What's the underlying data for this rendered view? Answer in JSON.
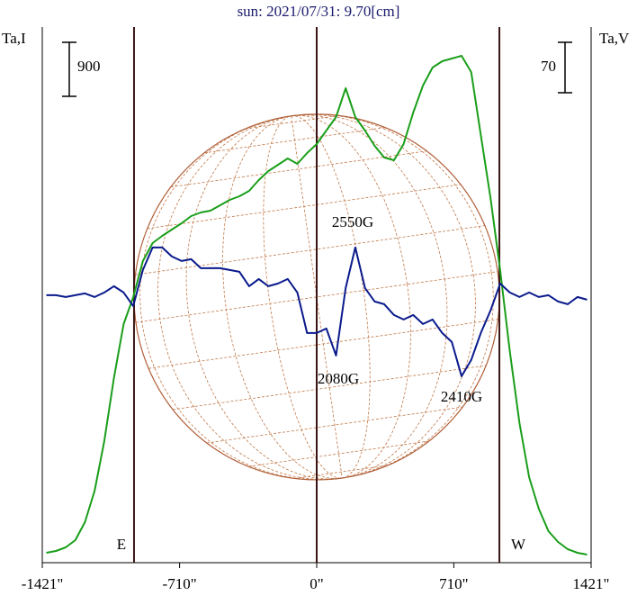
{
  "chart_data": {
    "type": "line",
    "title": "sun: 2021/07/31: 9.70[cm]",
    "y_label": "Ta,I",
    "y2_label": "Ta,V",
    "xlim": [
      -1421,
      1421
    ],
    "ylim": [
      0,
      8925
    ],
    "y2lim": [
      -369,
      375
    ],
    "xticks": [
      {
        "value": -1421,
        "label": "-1421\""
      },
      {
        "value": -710,
        "label": "-710\""
      },
      {
        "value": 0,
        "label": "0\""
      },
      {
        "value": 710,
        "label": "710\""
      },
      {
        "value": 1421,
        "label": "1421\""
      }
    ],
    "vlines": [
      -946,
      0,
      946
    ],
    "i_scale_bar": 900,
    "v_scale_bar": 70,
    "limb_labels": [
      "E",
      "W"
    ],
    "annotations": [
      "2550G",
      "2080G",
      "2410G"
    ],
    "x": [
      -1400,
      -1350,
      -1300,
      -1250,
      -1200,
      -1150,
      -1100,
      -1050,
      -1000,
      -950,
      -900,
      -850,
      -800,
      -750,
      -700,
      -650,
      -600,
      -550,
      -500,
      -450,
      -400,
      -350,
      -300,
      -250,
      -200,
      -150,
      -100,
      -50,
      0,
      50,
      100,
      150,
      200,
      250,
      300,
      350,
      400,
      450,
      500,
      550,
      600,
      650,
      700,
      750,
      800,
      850,
      900,
      950,
      1000,
      1050,
      1100,
      1150,
      1200,
      1250,
      1300,
      1350,
      1400
    ],
    "series": [
      {
        "name": "I",
        "color": "#1a9e1a",
        "axis": "y",
        "values": [
          165,
          195,
          255,
          375,
          675,
          1200,
          2025,
          3075,
          3975,
          4425,
          5025,
          5325,
          5445,
          5550,
          5655,
          5775,
          5835,
          5865,
          5955,
          6045,
          6105,
          6195,
          6375,
          6525,
          6630,
          6735,
          6645,
          6825,
          6975,
          7200,
          7425,
          7905,
          7425,
          7200,
          6945,
          6750,
          6705,
          6975,
          7500,
          7950,
          8250,
          8355,
          8400,
          8445,
          8175,
          7125,
          6075,
          4875,
          3525,
          2325,
          1425,
          900,
          525,
          345,
          225,
          165,
          135
        ]
      },
      {
        "name": "V",
        "color": "#0a1a8c",
        "axis": "y2",
        "values": [
          2.5,
          2.5,
          0,
          2.5,
          5,
          0,
          6.25,
          15,
          6.25,
          -12.5,
          37.5,
          68.75,
          68.75,
          56.25,
          50,
          52.5,
          40,
          40,
          40,
          37.5,
          35,
          15,
          25,
          15,
          18.75,
          25,
          6.25,
          -50,
          -50,
          -43.75,
          -81.25,
          12.5,
          68.75,
          12.5,
          -6.25,
          -10,
          -25,
          -31.25,
          -25,
          -37.5,
          -31.25,
          -50,
          -62.5,
          -110,
          -87.5,
          -50,
          -18.75,
          18.75,
          6.25,
          0,
          6.25,
          0,
          2.5,
          -6.25,
          -10,
          0,
          -3.75
        ]
      }
    ]
  }
}
